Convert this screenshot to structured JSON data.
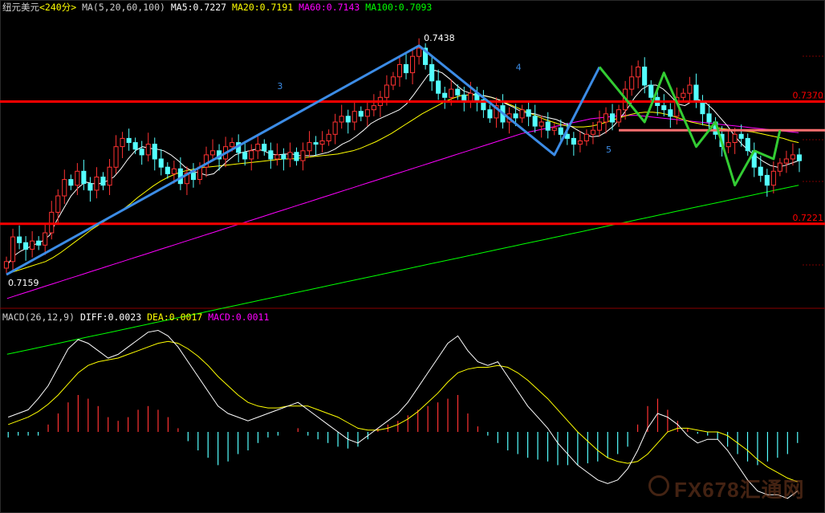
{
  "header": {
    "symbol": "纽元美元",
    "period": "<240分>",
    "ma_legend": "MA(5,20,60,100)",
    "ma5": "MA5:0.7227",
    "ma20": "MA20:0.7191",
    "ma60": "MA60:0.7143",
    "ma100": "MA100:0.7093"
  },
  "macd_header": {
    "title": "MACD(26,12,9)",
    "diff": "DIFF:0.0023",
    "dea": "DEA:0.0017",
    "macd": "MACD:0.0011"
  },
  "colors": {
    "bg": "#000000",
    "up": "#ff3232",
    "down": "#54ffff",
    "ma5": "#ffffff",
    "ma20": "#ffff00",
    "ma60": "#ff00ff",
    "ma100": "#00ff00",
    "wave_blue": "#3c8ce6",
    "wave_green": "#33cc33",
    "hline_red": "#ff0000",
    "hline_pink": "#ff6f6f"
  },
  "watermark": "FX678汇通网",
  "chart_data": {
    "type": "candlestick",
    "price_range": [
      0.712,
      0.748
    ],
    "annotations": [
      {
        "text": "0.7438",
        "price": 0.7438,
        "where": "peak"
      },
      {
        "text": "0.7159",
        "price": 0.7159,
        "where": "start low"
      },
      {
        "text": "0.7370",
        "price": 0.737,
        "where": "right edge resistance"
      },
      {
        "text": "0.7221",
        "price": 0.7221,
        "where": "right edge support"
      },
      {
        "text": "3",
        "where": "wave label"
      },
      {
        "text": "4",
        "where": "wave label"
      },
      {
        "text": "5",
        "where": "wave label"
      }
    ],
    "horizontal_lines": [
      {
        "price": 0.737,
        "color": "red"
      },
      {
        "price": 0.7221,
        "color": "red"
      },
      {
        "price": 0.7335,
        "color": "pink",
        "from_index": 95
      }
    ],
    "closes": [
      0.7175,
      0.7205,
      0.7198,
      0.719,
      0.72,
      0.7195,
      0.721,
      0.7235,
      0.7255,
      0.7275,
      0.7268,
      0.7285,
      0.727,
      0.7262,
      0.7278,
      0.7268,
      0.729,
      0.7315,
      0.7325,
      0.732,
      0.7312,
      0.7305,
      0.7318,
      0.73,
      0.729,
      0.7282,
      0.7288,
      0.727,
      0.7283,
      0.7275,
      0.729,
      0.7305,
      0.731,
      0.73,
      0.7315,
      0.732,
      0.7308,
      0.73,
      0.731,
      0.7318,
      0.731,
      0.73,
      0.7305,
      0.73,
      0.7308,
      0.7298,
      0.731,
      0.732,
      0.7318,
      0.7322,
      0.733,
      0.7345,
      0.7352,
      0.7345,
      0.7358,
      0.7352,
      0.736,
      0.7365,
      0.7375,
      0.739,
      0.74,
      0.7415,
      0.7405,
      0.7425,
      0.7435,
      0.7415,
      0.7395,
      0.738,
      0.7375,
      0.7385,
      0.7378,
      0.737,
      0.738,
      0.7372,
      0.736,
      0.735,
      0.7365,
      0.7345,
      0.7355,
      0.735,
      0.736,
      0.7352,
      0.734,
      0.7345,
      0.7335,
      0.7338,
      0.733,
      0.7325,
      0.7318,
      0.7322,
      0.733,
      0.7335,
      0.7345,
      0.7355,
      0.7345,
      0.736,
      0.7385,
      0.74,
      0.7412,
      0.739,
      0.7375,
      0.7365,
      0.736,
      0.7352,
      0.7375,
      0.738,
      0.739,
      0.737,
      0.7355,
      0.7345,
      0.733,
      0.7315,
      0.732,
      0.733,
      0.7325,
      0.731,
      0.729,
      0.728,
      0.7268,
      0.7285,
      0.7295,
      0.73,
      0.7305,
      0.7298
    ],
    "ma5": [
      0.717,
      0.7182,
      0.7188,
      0.7192,
      0.7196,
      0.72,
      0.7207,
      0.7225,
      0.724,
      0.7255,
      0.7265,
      0.7272,
      0.727,
      0.727,
      0.7273,
      0.7278,
      0.7288,
      0.73,
      0.731,
      0.7315,
      0.7313,
      0.7312,
      0.731,
      0.7305,
      0.7298,
      0.729,
      0.7285,
      0.7283,
      0.728,
      0.7282,
      0.729,
      0.7298,
      0.7305,
      0.7308,
      0.731,
      0.7312,
      0.731,
      0.7306,
      0.7305,
      0.7306,
      0.7306,
      0.7304,
      0.7304,
      0.7304,
      0.7306,
      0.7308,
      0.7312,
      0.7318,
      0.7322,
      0.7328,
      0.7335,
      0.7343,
      0.7348,
      0.7352,
      0.7356,
      0.736,
      0.7367,
      0.7378,
      0.739,
      0.7402,
      0.7408,
      0.7405,
      0.7398,
      0.739,
      0.7383,
      0.738,
      0.7377,
      0.7377,
      0.7375,
      0.7372,
      0.7367,
      0.7363,
      0.7358,
      0.7356,
      0.7355,
      0.7352,
      0.735,
      0.7348,
      0.7344,
      0.734,
      0.7335,
      0.733,
      0.7327,
      0.7328,
      0.7333,
      0.734,
      0.735,
      0.7362,
      0.7375,
      0.7385,
      0.739,
      0.739,
      0.7385,
      0.7377,
      0.7367,
      0.7365,
      0.737,
      0.7372,
      0.7368,
      0.736,
      0.735,
      0.734,
      0.7328,
      0.7318,
      0.731,
      0.7303,
      0.7297,
      0.7292,
      0.729,
      0.7292,
      0.7295,
      0.7298
    ],
    "ma20": [
      0.716,
      0.7163,
      0.7166,
      0.7169,
      0.7172,
      0.7175,
      0.718,
      0.7186,
      0.7193,
      0.72,
      0.7207,
      0.7214,
      0.722,
      0.7226,
      0.7232,
      0.7238,
      0.7245,
      0.7253,
      0.726,
      0.7267,
      0.7273,
      0.7278,
      0.7282,
      0.7285,
      0.7287,
      0.7289,
      0.729,
      0.7291,
      0.7292,
      0.7293,
      0.7294,
      0.7295,
      0.7296,
      0.7297,
      0.7298,
      0.7299,
      0.73,
      0.73,
      0.7301,
      0.7302,
      0.7303,
      0.7304,
      0.7305,
      0.7306,
      0.7308,
      0.731,
      0.7313,
      0.7317,
      0.7321,
      0.7326,
      0.7331,
      0.7337,
      0.7343,
      0.7349,
      0.7355,
      0.736,
      0.7365,
      0.737,
      0.7374,
      0.7377,
      0.7378,
      0.7378,
      0.7377,
      0.7375,
      0.7372,
      0.7368,
      0.7364,
      0.736,
      0.7356,
      0.7352,
      0.7348,
      0.7345,
      0.7342,
      0.734,
      0.7339,
      0.7339,
      0.734,
      0.7342,
      0.7345,
      0.7348,
      0.7351,
      0.7354,
      0.7356,
      0.7357,
      0.7357,
      0.7356,
      0.7354,
      0.7351,
      0.7348,
      0.7345,
      0.7343,
      0.7341,
      0.7339,
      0.7337,
      0.7336,
      0.7335,
      0.7334,
      0.7333,
      0.7331,
      0.7329,
      0.7327,
      0.7325,
      0.7322,
      0.732
    ],
    "ma60": [
      0.713,
      0.7133,
      0.7136,
      0.7139,
      0.7142,
      0.7145,
      0.7148,
      0.7151,
      0.7154,
      0.7157,
      0.716,
      0.7163,
      0.7166,
      0.7169,
      0.7172,
      0.7175,
      0.7178,
      0.7181,
      0.7184,
      0.7187,
      0.719,
      0.7193,
      0.7196,
      0.7199,
      0.7202,
      0.7205,
      0.7208,
      0.7211,
      0.7214,
      0.7217,
      0.722,
      0.7223,
      0.7226,
      0.7229,
      0.7232,
      0.7235,
      0.7238,
      0.7241,
      0.7244,
      0.7247,
      0.725,
      0.7253,
      0.7256,
      0.7259,
      0.7262,
      0.7265,
      0.7268,
      0.7271,
      0.7274,
      0.7277,
      0.728,
      0.7283,
      0.7286,
      0.7289,
      0.7292,
      0.7295,
      0.7298,
      0.7301,
      0.7304,
      0.7307,
      0.731,
      0.7313,
      0.7316,
      0.7319,
      0.7322,
      0.7325,
      0.7328,
      0.7331,
      0.7333,
      0.7335,
      0.7337,
      0.7339,
      0.7341,
      0.7343,
      0.7345,
      0.7347,
      0.7349,
      0.735,
      0.7351,
      0.7352,
      0.7353,
      0.7353,
      0.7353,
      0.7352,
      0.7351,
      0.735,
      0.7349,
      0.7348,
      0.7347,
      0.7346,
      0.7345,
      0.7344,
      0.7343,
      0.7342,
      0.7341,
      0.734,
      0.7339,
      0.7338,
      0.7337,
      0.7336,
      0.7335,
      0.7334,
      0.7333,
      0.7332
    ],
    "ma100": [
      0.7062,
      0.7064,
      0.7066,
      0.7068,
      0.707,
      0.7072,
      0.7074,
      0.7076,
      0.7078,
      0.708,
      0.7082,
      0.7084,
      0.7086,
      0.7088,
      0.709,
      0.7092,
      0.7094,
      0.7096,
      0.7098,
      0.71,
      0.7102,
      0.7104,
      0.7106,
      0.7108,
      0.711,
      0.7112,
      0.7114,
      0.7116,
      0.7118,
      0.712,
      0.7122,
      0.7124,
      0.7126,
      0.7128,
      0.713,
      0.7132,
      0.7134,
      0.7136,
      0.7138,
      0.714,
      0.7142,
      0.7144,
      0.7146,
      0.7148,
      0.715,
      0.7152,
      0.7154,
      0.7156,
      0.7158,
      0.716,
      0.7162,
      0.7164,
      0.7166,
      0.7168,
      0.717,
      0.7172,
      0.7174,
      0.7176,
      0.7178,
      0.718,
      0.7182,
      0.7184,
      0.7186,
      0.7188,
      0.719,
      0.7192,
      0.7194,
      0.7196,
      0.7198,
      0.72,
      0.7202,
      0.7204,
      0.7206,
      0.7208,
      0.721,
      0.7212,
      0.7214,
      0.7216,
      0.7218,
      0.722,
      0.7222,
      0.7224,
      0.7226,
      0.7228,
      0.723,
      0.7232,
      0.7234,
      0.7236,
      0.7238,
      0.724,
      0.7242,
      0.7244,
      0.7246,
      0.7248,
      0.725,
      0.7252,
      0.7254,
      0.7256,
      0.7258,
      0.726,
      0.7262,
      0.7264,
      0.7266,
      0.7268
    ],
    "macd": {
      "range": [
        -0.004,
        0.006
      ],
      "diff": [
        0.0008,
        0.001,
        0.0012,
        0.0018,
        0.0025,
        0.0035,
        0.0045,
        0.005,
        0.0048,
        0.0044,
        0.004,
        0.0042,
        0.0046,
        0.005,
        0.0054,
        0.0055,
        0.0052,
        0.0046,
        0.0038,
        0.003,
        0.0022,
        0.0014,
        0.001,
        0.0008,
        0.0006,
        0.0008,
        0.001,
        0.0012,
        0.0014,
        0.0016,
        0.0012,
        0.0008,
        0.0004,
        0.0,
        -0.0004,
        -0.0006,
        -0.0002,
        0.0002,
        0.0006,
        0.001,
        0.0016,
        0.0024,
        0.0032,
        0.004,
        0.0048,
        0.0052,
        0.0044,
        0.0038,
        0.0036,
        0.0038,
        0.003,
        0.0022,
        0.0014,
        0.0008,
        0.0002,
        -0.0006,
        -0.0012,
        -0.0018,
        -0.0022,
        -0.0026,
        -0.0028,
        -0.0026,
        -0.002,
        -0.001,
        0.0002,
        0.001,
        0.0008,
        0.0004,
        -0.0002,
        -0.0006,
        -0.0004,
        -0.0004,
        -0.001,
        -0.0018,
        -0.0026,
        -0.0032,
        -0.0034,
        -0.0034,
        -0.0036,
        -0.0032
      ],
      "dea": [
        0.0004,
        0.0006,
        0.0008,
        0.0011,
        0.0015,
        0.002,
        0.0026,
        0.0032,
        0.0036,
        0.0038,
        0.0039,
        0.004,
        0.0042,
        0.0044,
        0.0046,
        0.0048,
        0.0049,
        0.0048,
        0.0045,
        0.0041,
        0.0036,
        0.003,
        0.0025,
        0.002,
        0.0016,
        0.0014,
        0.0013,
        0.0013,
        0.0014,
        0.0014,
        0.0014,
        0.0012,
        0.001,
        0.0008,
        0.0005,
        0.0002,
        0.0001,
        0.0001,
        0.0002,
        0.0004,
        0.0007,
        0.0011,
        0.0016,
        0.0021,
        0.0027,
        0.0032,
        0.0034,
        0.0035,
        0.0035,
        0.0036,
        0.0035,
        0.0032,
        0.0028,
        0.0023,
        0.0018,
        0.0012,
        0.0006,
        0.0,
        -0.0005,
        -0.001,
        -0.0014,
        -0.0016,
        -0.0017,
        -0.0016,
        -0.0012,
        -0.0006,
        0.0,
        0.0002,
        0.0002,
        0.0001,
        0.0,
        0.0,
        -0.0002,
        -0.0006,
        -0.001,
        -0.0015,
        -0.0019,
        -0.0022,
        -0.0025,
        -0.0027
      ],
      "hist": [
        -0.0003,
        -0.0002,
        -0.0002,
        -0.0002,
        0.0004,
        0.001,
        0.0016,
        0.002,
        0.0018,
        0.0014,
        0.0008,
        0.0006,
        0.0008,
        0.0012,
        0.0014,
        0.0012,
        0.0008,
        0.0002,
        -0.0005,
        -0.001,
        -0.0014,
        -0.0018,
        -0.0016,
        -0.0012,
        -0.001,
        -0.0006,
        -0.0003,
        -0.0002,
        0.0,
        0.0002,
        -0.0002,
        -0.0004,
        -0.0006,
        -0.0008,
        -0.0009,
        -0.0008,
        -0.0004,
        0.0002,
        0.0004,
        0.0006,
        0.0009,
        0.0012,
        0.0014,
        0.0016,
        0.0018,
        0.002,
        0.001,
        0.0003,
        -0.0002,
        -0.0006,
        -0.001,
        -0.0012,
        -0.0014,
        -0.0015,
        -0.0016,
        -0.0018,
        -0.0018,
        -0.0018,
        -0.0017,
        -0.0016,
        -0.0014,
        -0.0012,
        -0.0008,
        0.0004,
        0.0014,
        0.0018,
        0.0012,
        0.0006,
        0.0002,
        -0.0001,
        -0.0002,
        -0.0004,
        -0.0008,
        -0.0012,
        -0.0016,
        -0.0018,
        -0.0016,
        -0.0014,
        -0.0012,
        -0.0006
      ]
    }
  }
}
